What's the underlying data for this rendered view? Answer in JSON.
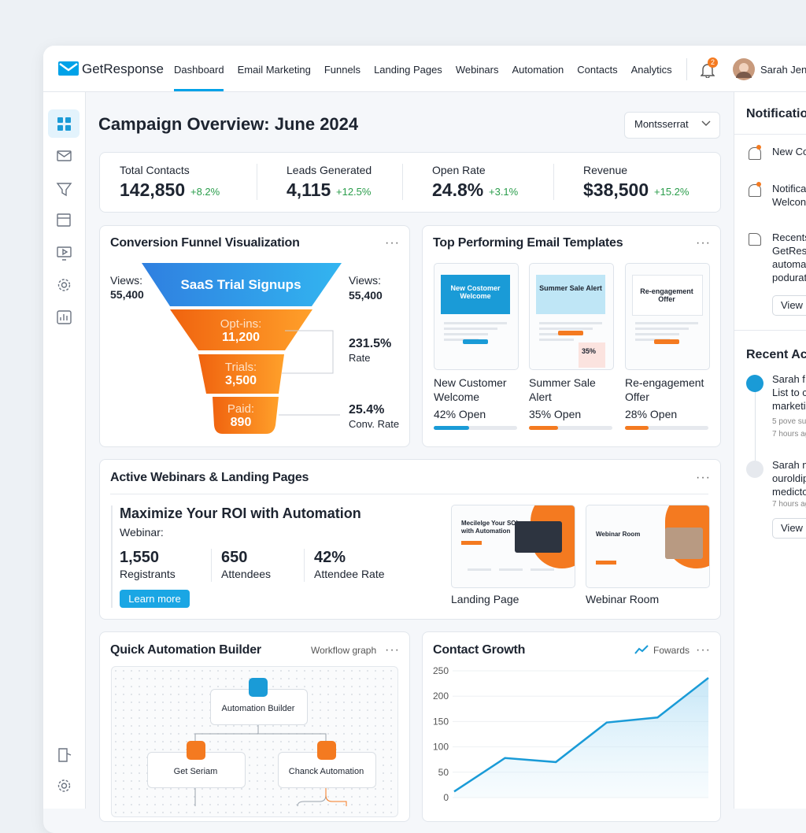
{
  "nav": {
    "brand": "GetResponse",
    "items": [
      "Dashboard",
      "Email Marketing",
      "Funnels",
      "Landing Pages",
      "Webinars",
      "Automation",
      "Contacts",
      "Analytics"
    ],
    "notification_count": "2",
    "user": "Sarah Jen"
  },
  "header": {
    "title": "Campaign Overview: June 2024",
    "font_select": "Montsserrat"
  },
  "kpis": [
    {
      "label": "Total Contacts",
      "value": "142,850",
      "change": "+8.2%"
    },
    {
      "label": "Leads Generated",
      "value": "4,115",
      "change": "+12.5%"
    },
    {
      "label": "Open Rate",
      "value": "24.8%",
      "change": "+3.1%"
    },
    {
      "label": "Revenue",
      "value": "$38,500",
      "change": "+15.2%"
    }
  ],
  "funnel": {
    "title": "Conversion Funnel Visualization",
    "left_label": "Views:",
    "left_value": "55,400",
    "stages": [
      {
        "label": "SaaS Trial Signups"
      },
      {
        "label": "Opt-ins:",
        "value": "11,200"
      },
      {
        "label": "Trials:",
        "value": "3,500"
      },
      {
        "label": "Paid:",
        "value": "890"
      }
    ],
    "annotations": [
      {
        "value": "Views:",
        "label": "55,400"
      },
      {
        "value": "231.5%",
        "label": "Rate"
      },
      {
        "value": "25.4%",
        "label": "Conv. Rate"
      }
    ]
  },
  "templates": {
    "title": "Top Performing Email Templates",
    "items": [
      {
        "thumb": "New Costomer Welcome",
        "name": "New Customer Welcome",
        "open": 42,
        "open_label": "42% Open"
      },
      {
        "thumb": "Summer Sale Alert",
        "badge": "35%",
        "name": "Summer Sale Alert",
        "open": 35,
        "open_label": "35% Open"
      },
      {
        "thumb": "Re-engagement Offer",
        "name": "Re-engagement Offer",
        "open": 28,
        "open_label": "28% Open"
      }
    ]
  },
  "webinars": {
    "title": "Active Webinars & Landing Pages",
    "headline": "Maximize Your ROI with Automation",
    "subtitle": "Webinar:",
    "stats": [
      {
        "value": "1,550",
        "label": "Registrants"
      },
      {
        "value": "650",
        "label": "Attendees"
      },
      {
        "value": "42%",
        "label": "Attendee Rate"
      }
    ],
    "button": "Learn more",
    "previews": [
      {
        "thumb": "Mecilelge Your SOI with Automation",
        "caption": "Landing Page"
      },
      {
        "thumb": "Webinar Room",
        "caption": "Webinar Room"
      }
    ]
  },
  "automation": {
    "title": "Quick Automation Builder",
    "link": "Workflow graph",
    "nodes": [
      "Automation Builder",
      "Get Seriam",
      "Chanck Automation"
    ]
  },
  "contact_growth": {
    "type": "line",
    "title": "Contact Growth",
    "legend": "Fowards",
    "color": "#1a9bd7",
    "values": [
      12,
      78,
      70,
      148,
      158,
      236
    ],
    "ylim": [
      0,
      250
    ],
    "yticks": [
      0,
      50,
      100,
      150,
      200,
      250
    ],
    "grid": true
  },
  "notifications": {
    "title": "Notificatio",
    "items": [
      [
        "New Co"
      ],
      [
        "Notifica",
        "Welcon"
      ],
      [
        "Recents",
        "GetResp",
        "automa",
        "podurat"
      ]
    ],
    "button": "View"
  },
  "recent_activity": {
    "title": "Recent Act",
    "items": [
      {
        "lines": [
          "Sarah f",
          "List to c",
          "marketi"
        ],
        "meta": [
          "5 pove su",
          "7 hours ag"
        ]
      },
      {
        "lines": [
          "Sarah n",
          "ouroldip",
          "medicto"
        ],
        "meta": [
          "7 hours ag"
        ]
      }
    ],
    "button": "View"
  }
}
